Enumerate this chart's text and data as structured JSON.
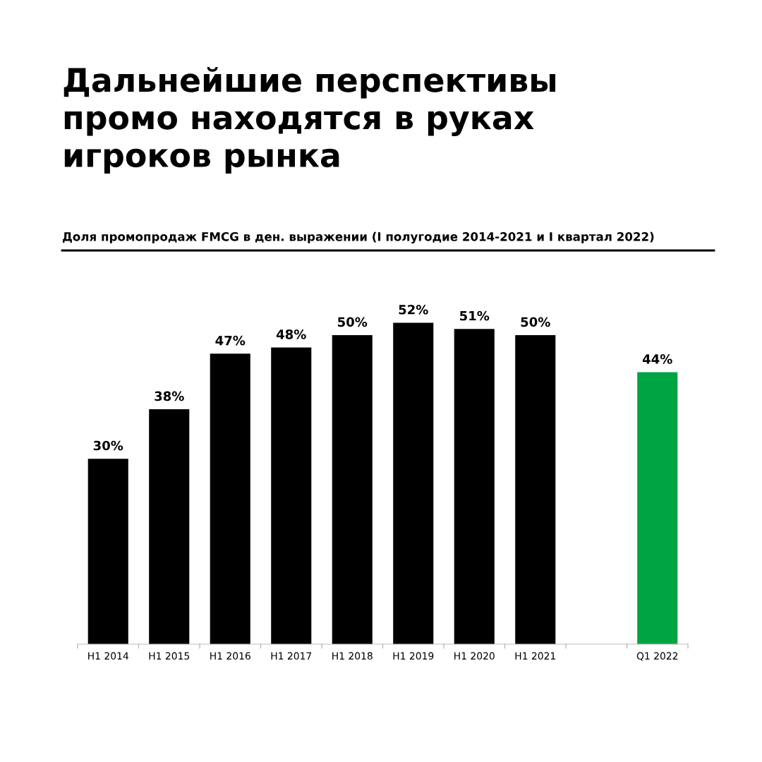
{
  "chart_data": {
    "type": "bar",
    "title": "Дальнейшие перспективы\nпромо находятся в руках\nигроков рынка",
    "subtitle": "Доля промопродаж FMCG в ден. выражении (I полугодие 2014-2021 и I квартал 2022)",
    "categories": [
      "H1 2014",
      "H1 2015",
      "H1 2016",
      "H1 2017",
      "H1 2018",
      "H1 2019",
      "H1 2020",
      "H1 2021",
      null,
      "Q1 2022"
    ],
    "values": [
      30,
      38,
      47,
      48,
      50,
      52,
      51,
      50,
      null,
      44
    ],
    "value_labels": [
      "30%",
      "38%",
      "47%",
      "48%",
      "50%",
      "52%",
      "51%",
      "50%",
      null,
      "44%"
    ],
    "colors": [
      "#000000",
      "#000000",
      "#000000",
      "#000000",
      "#000000",
      "#000000",
      "#000000",
      "#000000",
      "#000000",
      "#00a443"
    ],
    "tick_labels": "x",
    "grid": false,
    "legend": false
  }
}
